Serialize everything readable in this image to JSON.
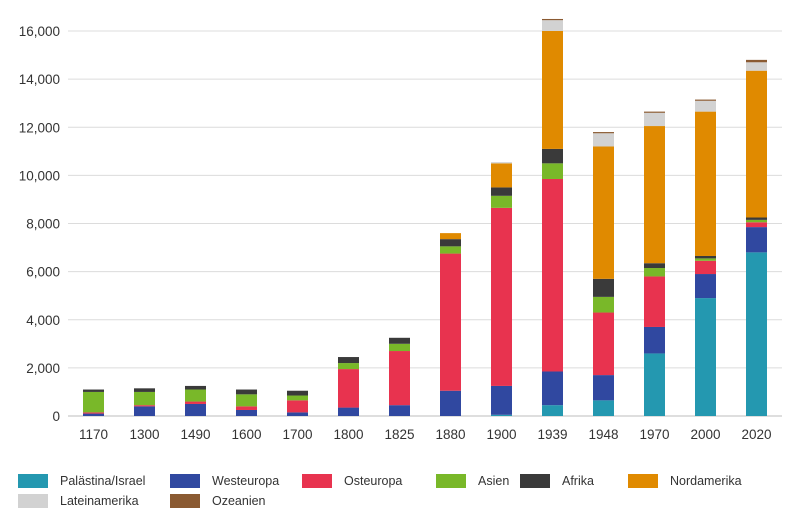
{
  "chart_data": {
    "type": "bar",
    "stacked": true,
    "categories": [
      "1170",
      "1300",
      "1490",
      "1600",
      "1700",
      "1800",
      "1825",
      "1880",
      "1900",
      "1939",
      "1948",
      "1970",
      "2000",
      "2020"
    ],
    "ylim": [
      0,
      16500
    ],
    "yticks": [
      0,
      2000,
      4000,
      6000,
      8000,
      10000,
      12000,
      14000,
      16000
    ],
    "ytick_labels": [
      "0",
      "2,000",
      "4,000",
      "6,000",
      "8,000",
      "10,000",
      "12,000",
      "14,000",
      "16,000"
    ],
    "grid": true,
    "legend_position": "bottom",
    "series": [
      {
        "name": "Palästina/Israel",
        "color": "#2498b0",
        "values": [
          0,
          0,
          0,
          0,
          0,
          0,
          0,
          0,
          50,
          450,
          650,
          2600,
          4900,
          6800
        ]
      },
      {
        "name": "Westeuropa",
        "color": "#3048a0",
        "values": [
          100,
          400,
          500,
          250,
          150,
          350,
          450,
          1050,
          1200,
          1400,
          1050,
          1100,
          1000,
          1050
        ]
      },
      {
        "name": "Osteuropa",
        "color": "#e8334f",
        "values": [
          50,
          50,
          100,
          150,
          500,
          1600,
          2250,
          5700,
          7400,
          8000,
          2600,
          2100,
          550,
          200
        ]
      },
      {
        "name": "Asien",
        "color": "#79b829",
        "values": [
          850,
          550,
          500,
          500,
          200,
          250,
          300,
          300,
          500,
          650,
          650,
          350,
          100,
          100
        ]
      },
      {
        "name": "Afrika",
        "color": "#3a3a3a",
        "values": [
          100,
          150,
          150,
          200,
          200,
          250,
          250,
          300,
          350,
          600,
          750,
          200,
          100,
          100
        ]
      },
      {
        "name": "Nordamerika",
        "color": "#e08a00",
        "values": [
          0,
          0,
          0,
          0,
          0,
          0,
          0,
          250,
          1000,
          4900,
          5500,
          5700,
          6000,
          6100
        ]
      },
      {
        "name": "Lateinamerika",
        "color": "#d2d2d2",
        "values": [
          0,
          0,
          0,
          0,
          0,
          0,
          0,
          0,
          50,
          450,
          550,
          550,
          450,
          350
        ]
      },
      {
        "name": "Ozeanien",
        "color": "#8a5a32",
        "values": [
          0,
          0,
          0,
          0,
          0,
          0,
          0,
          0,
          0,
          50,
          50,
          50,
          50,
          100
        ]
      }
    ]
  }
}
